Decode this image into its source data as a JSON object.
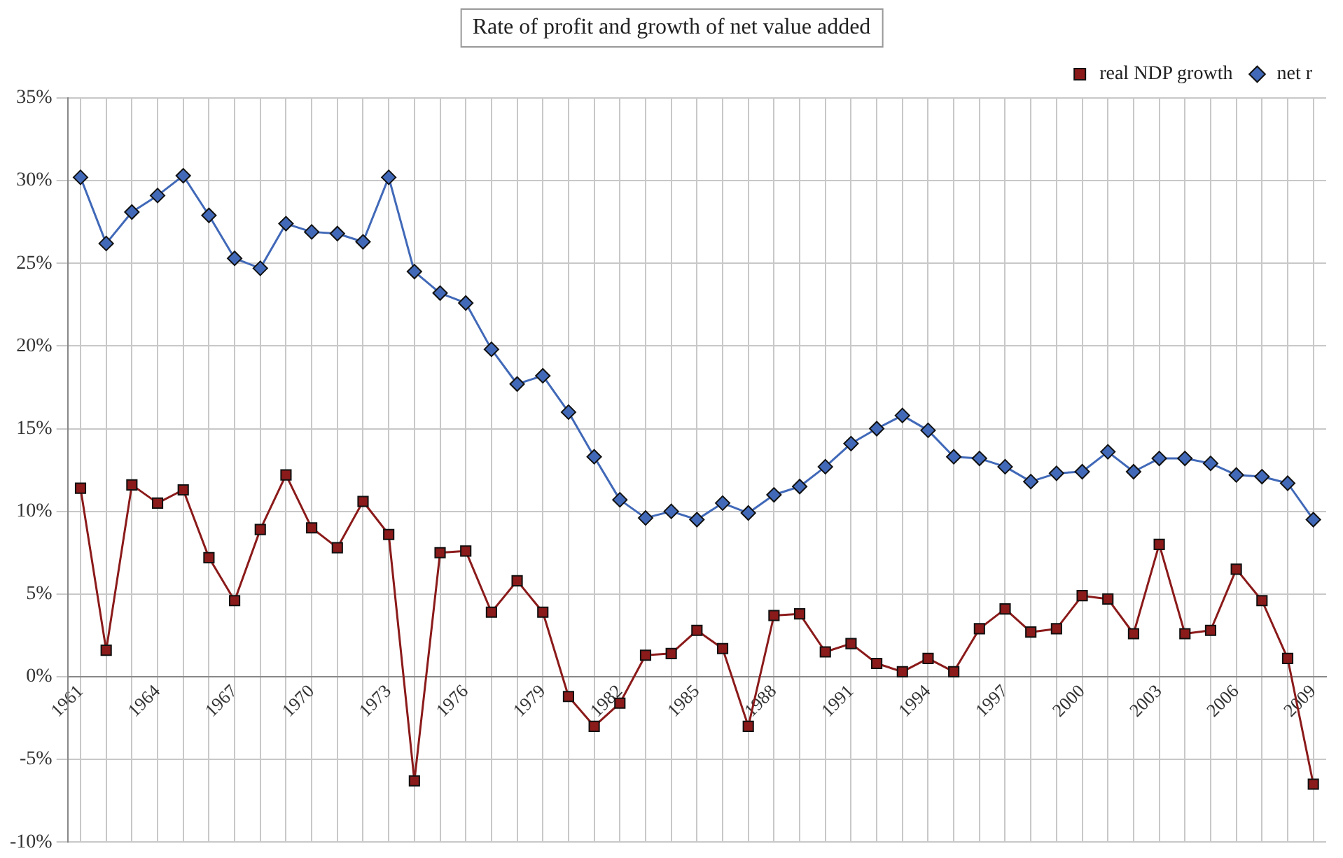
{
  "chart_data": {
    "type": "line",
    "title": "Rate of profit and growth of net value added",
    "categories": [
      "1961",
      null,
      null,
      "1964",
      null,
      null,
      "1967",
      null,
      null,
      "1970",
      null,
      null,
      "1973",
      null,
      null,
      "1976",
      null,
      null,
      "1979",
      null,
      null,
      "1982",
      null,
      null,
      "1985",
      null,
      null,
      "1988",
      null,
      null,
      "1991",
      null,
      null,
      "1994",
      null,
      null,
      "1997",
      null,
      null,
      "2000",
      null,
      null,
      "2003",
      null,
      null,
      "2006",
      null,
      null,
      "2009"
    ],
    "series": [
      {
        "name": "real NDP growth",
        "color": "#8b1a1a",
        "marker": "square",
        "values": [
          11.4,
          1.6,
          11.6,
          10.5,
          11.3,
          7.2,
          4.6,
          8.9,
          12.2,
          9.0,
          7.8,
          10.6,
          8.6,
          -6.3,
          7.5,
          7.6,
          3.9,
          5.8,
          3.9,
          -1.2,
          -3.0,
          -1.6,
          1.3,
          1.4,
          2.8,
          1.7,
          -3.0,
          3.7,
          3.8,
          1.5,
          2.0,
          0.8,
          0.3,
          1.1,
          0.3,
          2.9,
          4.1,
          2.7,
          2.9,
          4.9,
          4.7,
          2.6,
          8.0,
          2.6,
          2.8,
          6.5,
          4.6,
          1.1,
          -6.5
        ]
      },
      {
        "name": "net r",
        "color": "#4169b8",
        "marker": "diamond",
        "values": [
          30.2,
          26.2,
          28.1,
          29.1,
          30.3,
          27.9,
          25.3,
          24.7,
          27.4,
          26.9,
          26.8,
          26.3,
          30.2,
          24.5,
          23.2,
          22.6,
          19.8,
          17.7,
          18.2,
          16.0,
          13.3,
          10.7,
          9.6,
          10.0,
          9.5,
          10.5,
          9.9,
          11.0,
          11.5,
          12.7,
          14.1,
          15.0,
          15.8,
          14.9,
          13.3,
          13.2,
          12.7,
          11.8,
          12.3,
          12.4,
          13.6,
          12.4,
          13.2,
          13.2,
          12.9,
          12.2,
          12.1,
          11.7,
          9.5
        ]
      }
    ],
    "ylim": [
      -10,
      35
    ],
    "yticks": [
      {
        "value": -10,
        "label": "-10%"
      },
      {
        "value": -5,
        "label": "-5%"
      },
      {
        "value": 0,
        "label": "0%"
      },
      {
        "value": 5,
        "label": "5%"
      },
      {
        "value": 10,
        "label": "10%"
      },
      {
        "value": 15,
        "label": "15%"
      },
      {
        "value": 20,
        "label": "20%"
      },
      {
        "value": 25,
        "label": "25%"
      },
      {
        "value": 30,
        "label": "30%"
      },
      {
        "value": 35,
        "label": "35%"
      }
    ],
    "grid": true,
    "legend": "top right",
    "line_style": "solid"
  }
}
